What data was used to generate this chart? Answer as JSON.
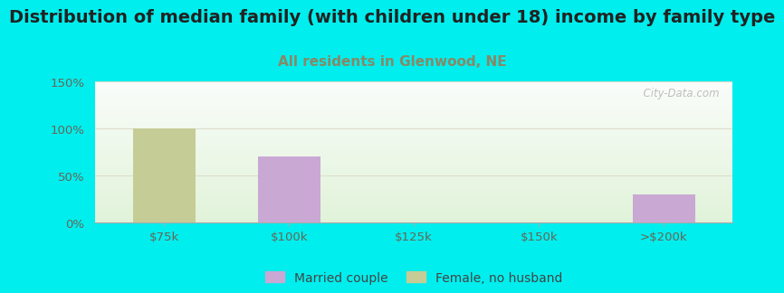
{
  "title": "Distribution of median family (with children under 18) income by family type",
  "subtitle": "All residents in Glenwood, NE",
  "categories": [
    "$75k",
    "$100k",
    "$125k",
    "$150k",
    ">$200k"
  ],
  "married_couple": [
    0,
    70,
    0,
    0,
    30
  ],
  "female_no_husband": [
    100,
    0,
    0,
    0,
    0
  ],
  "married_color": "#c9a8d4",
  "female_color": "#c5cc96",
  "bg_color": "#00EEEE",
  "ylim": [
    0,
    150
  ],
  "yticks": [
    0,
    50,
    100,
    150
  ],
  "ytick_labels": [
    "0%",
    "50%",
    "100%",
    "150%"
  ],
  "title_fontsize": 14,
  "subtitle_fontsize": 11,
  "subtitle_color": "#888866",
  "watermark": "  City-Data.com",
  "bar_width": 0.5,
  "tick_color": "#666655",
  "grid_color": "#ddddcc",
  "spine_color": "#aaaaaa"
}
